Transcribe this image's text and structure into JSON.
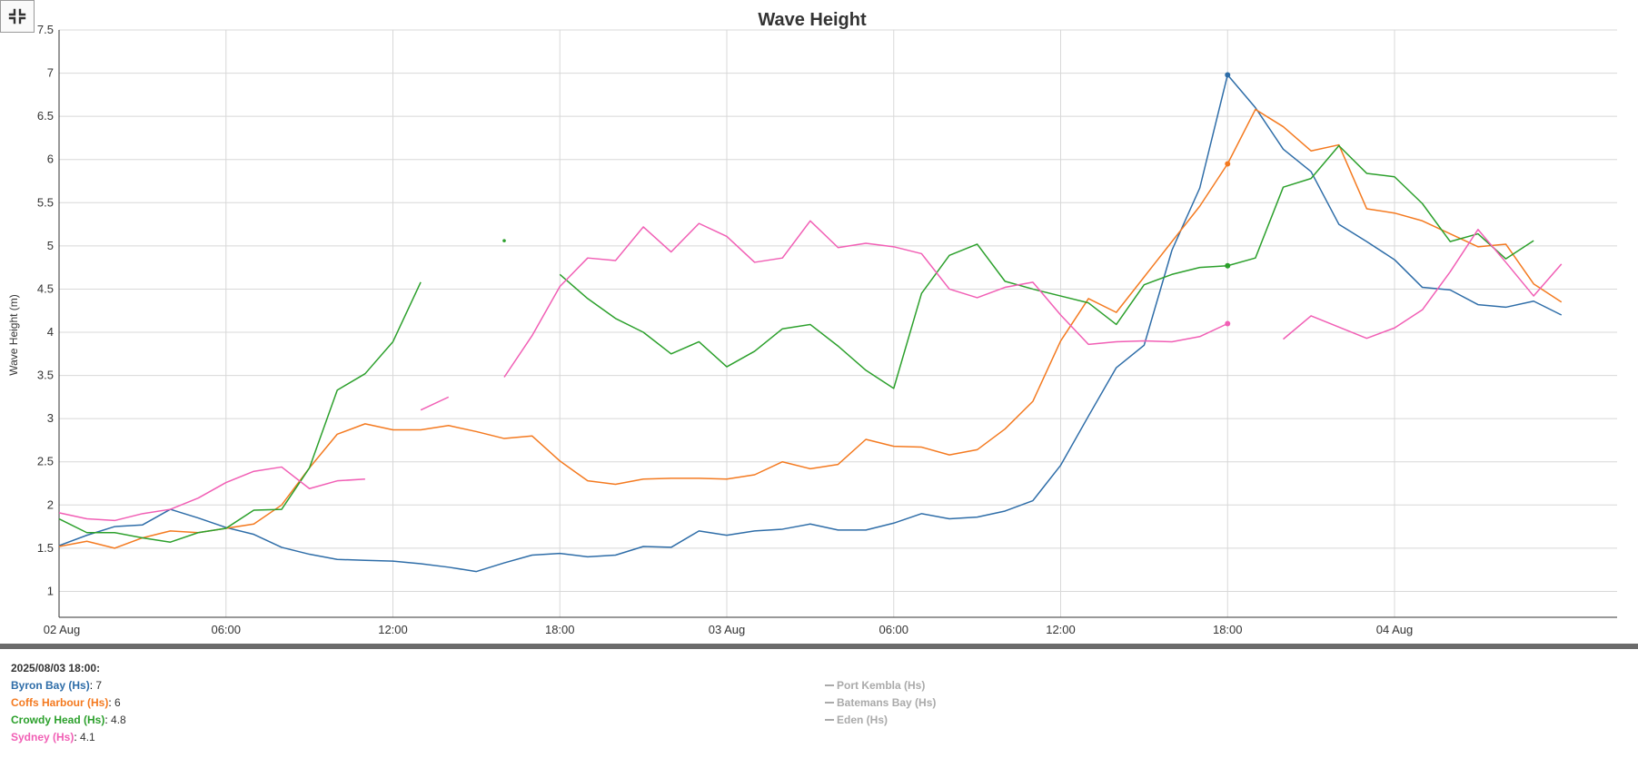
{
  "chart_data": {
    "type": "line",
    "title": "Wave Height",
    "xlabel": "",
    "ylabel": "Wave Height (m)",
    "ylim": [
      0.7,
      7.5
    ],
    "yticks": [
      "1",
      "1.5",
      "2",
      "2.5",
      "3",
      "3.5",
      "4",
      "4.5",
      "5",
      "5.5",
      "6",
      "6.5",
      "7",
      "7.5"
    ],
    "xlim_hours": [
      0,
      45
    ],
    "xticks": [
      {
        "hour": 0,
        "label": "02 Aug"
      },
      {
        "hour": 6,
        "label": "06:00"
      },
      {
        "hour": 12,
        "label": "12:00"
      },
      {
        "hour": 18,
        "label": "18:00"
      },
      {
        "hour": 24,
        "label": "03 Aug"
      },
      {
        "hour": 30,
        "label": "06:00"
      },
      {
        "hour": 36,
        "label": "12:00"
      },
      {
        "hour": 42,
        "label": "18:00"
      },
      {
        "hour": 48,
        "label": "04 Aug"
      }
    ],
    "x_unit": "hours from 02 Aug 00:00",
    "x": [
      0,
      1,
      2,
      3,
      4,
      5,
      6,
      7,
      8,
      9,
      10,
      11,
      12,
      13,
      14,
      15,
      16,
      17,
      18,
      19,
      20,
      21,
      22,
      23,
      24,
      25,
      26,
      27,
      28,
      29,
      30,
      31,
      32,
      33,
      34,
      35,
      36,
      37,
      38,
      39,
      40,
      41,
      42,
      43,
      44,
      45,
      46,
      47,
      48,
      49,
      50,
      51,
      52,
      53,
      54,
      55,
      56
    ],
    "highlight_hour": 42,
    "grid": true,
    "series": [
      {
        "name": "Byron Bay (Hs)",
        "color": "#2e6da8",
        "values": [
          1.53,
          1.65,
          1.75,
          1.77,
          1.95,
          1.85,
          1.74,
          1.66,
          1.51,
          1.43,
          1.37,
          1.36,
          1.35,
          1.32,
          1.28,
          1.23,
          1.33,
          1.42,
          1.44,
          1.4,
          1.42,
          1.52,
          1.51,
          1.7,
          1.65,
          1.7,
          1.72,
          1.78,
          1.71,
          1.71,
          1.79,
          1.9,
          1.84,
          1.86,
          1.93,
          2.05,
          2.46,
          3.03,
          3.59,
          3.85,
          4.95,
          5.67,
          6.98,
          6.6,
          6.12,
          5.86,
          5.25,
          5.05,
          4.84,
          4.52,
          4.49,
          4.32,
          4.29,
          4.36,
          4.2,
          null,
          null
        ]
      },
      {
        "name": "Coffs Harbour (Hs)",
        "color": "#f47a20",
        "values": [
          1.52,
          1.58,
          1.5,
          1.62,
          1.7,
          1.68,
          1.73,
          1.78,
          2.0,
          2.43,
          2.82,
          2.94,
          2.87,
          2.87,
          2.92,
          2.85,
          2.77,
          2.8,
          2.51,
          2.28,
          2.24,
          2.3,
          2.31,
          2.31,
          2.3,
          2.35,
          2.5,
          2.42,
          2.47,
          2.76,
          2.68,
          2.67,
          2.58,
          2.64,
          2.88,
          3.2,
          3.9,
          4.39,
          4.23,
          4.64,
          5.05,
          5.46,
          5.95,
          6.58,
          6.38,
          6.1,
          6.17,
          5.43,
          5.38,
          5.29,
          5.14,
          4.99,
          5.02,
          4.56,
          4.35,
          null,
          null
        ]
      },
      {
        "name": "Crowdy Head (Hs)",
        "color": "#2ca02c",
        "values": [
          1.84,
          1.68,
          1.68,
          1.62,
          1.57,
          1.68,
          1.73,
          1.94,
          1.95,
          2.43,
          3.33,
          3.52,
          3.89,
          4.58,
          null,
          null,
          5.06,
          null,
          4.67,
          4.39,
          4.16,
          4.0,
          3.75,
          3.89,
          3.6,
          3.78,
          4.04,
          4.09,
          3.84,
          3.56,
          3.35,
          4.45,
          4.89,
          5.02,
          4.59,
          4.5,
          4.42,
          4.34,
          4.09,
          4.55,
          4.67,
          4.75,
          4.77,
          4.86,
          5.68,
          5.78,
          6.16,
          5.84,
          5.8,
          5.49,
          5.05,
          5.14,
          4.85,
          5.06,
          null,
          null,
          null
        ]
      },
      {
        "name": "Sydney (Hs)",
        "color": "#f15fb5",
        "values": [
          1.91,
          1.84,
          1.82,
          1.9,
          1.95,
          2.08,
          2.26,
          2.39,
          2.44,
          2.19,
          2.28,
          2.3,
          null,
          3.1,
          3.25,
          null,
          3.48,
          3.96,
          4.53,
          4.86,
          4.83,
          5.22,
          4.93,
          5.26,
          5.11,
          4.81,
          4.86,
          5.29,
          4.98,
          5.03,
          4.99,
          4.91,
          4.5,
          4.4,
          4.52,
          4.58,
          4.2,
          3.86,
          3.89,
          3.9,
          3.89,
          3.95,
          4.1,
          null,
          3.92,
          4.19,
          4.06,
          3.93,
          4.05,
          4.26,
          4.7,
          5.19,
          4.81,
          4.42,
          4.79,
          null,
          null
        ]
      }
    ]
  },
  "tooltip": {
    "heading": "2025/08/03 18:00:",
    "entries": [
      {
        "name": "Byron Bay (Hs)",
        "value": "7",
        "color": "#2e6da8"
      },
      {
        "name": "Coffs Harbour (Hs)",
        "value": "6",
        "color": "#f47a20"
      },
      {
        "name": "Crowdy Head (Hs)",
        "value": "4.8",
        "color": "#2ca02c"
      },
      {
        "name": "Sydney (Hs)",
        "value": "4.1",
        "color": "#f15fb5"
      }
    ]
  },
  "inactive_legend": [
    "Port Kembla (Hs)",
    "Batemans Bay (Hs)",
    "Eden (Hs)"
  ],
  "controls": {
    "collapse_icon": "collapse-icon"
  }
}
